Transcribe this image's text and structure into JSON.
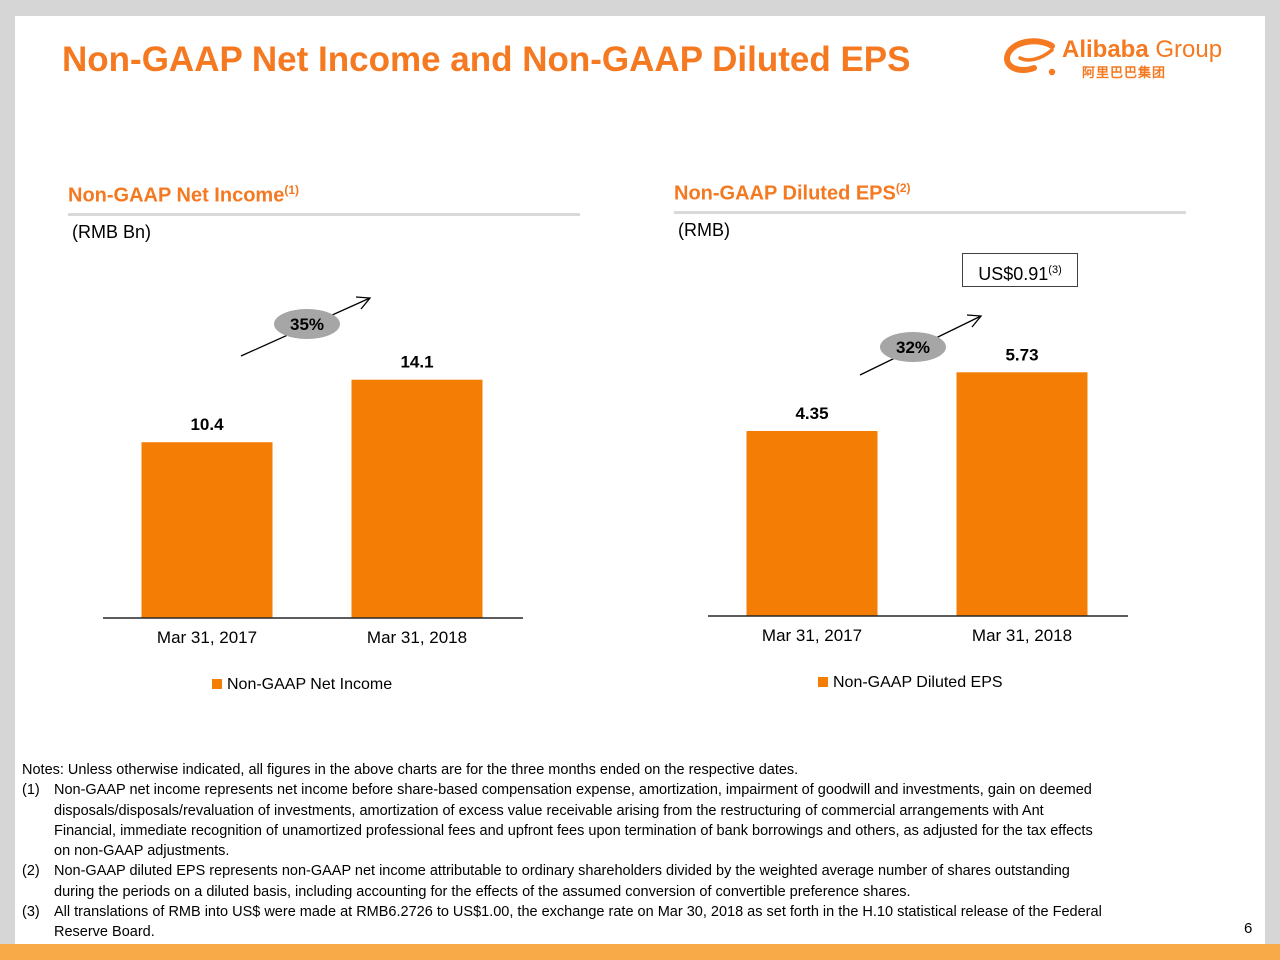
{
  "title": "Non-GAAP Net Income and Non-GAAP Diluted EPS",
  "logo": {
    "name": "Alibaba",
    "group": "Group",
    "chinese": "阿里巴巴集团"
  },
  "colors": {
    "accent": "#f47920",
    "bar": "#f47d05",
    "growth_bubble": "#a6a6a6"
  },
  "left_section": {
    "title": "Non-GAAP Net Income",
    "note_ref": "(1)",
    "unit": "(RMB Bn)"
  },
  "right_section": {
    "title": "Non-GAAP Diluted EPS",
    "note_ref": "(2)",
    "unit": "(RMB)",
    "usd_box": "US$0.91",
    "usd_note_ref": "(3)"
  },
  "chart_data": [
    {
      "type": "bar",
      "title": "Non-GAAP Net Income",
      "unit": "RMB Bn",
      "categories": [
        "Mar 31, 2017",
        "Mar 31, 2018"
      ],
      "series": [
        {
          "name": "Non-GAAP Net Income",
          "values": [
            10.4,
            14.1
          ]
        }
      ],
      "value_labels": [
        "10.4",
        "14.1"
      ],
      "growth": "35%",
      "ylim": [
        0,
        20
      ],
      "legend": "bottom"
    },
    {
      "type": "bar",
      "title": "Non-GAAP Diluted EPS",
      "unit": "RMB",
      "categories": [
        "Mar 31, 2017",
        "Mar 31, 2018"
      ],
      "series": [
        {
          "name": "Non-GAAP Diluted EPS",
          "values": [
            4.35,
            5.73
          ]
        }
      ],
      "value_labels": [
        "4.35",
        "5.73"
      ],
      "growth": "32%",
      "ylim": [
        0,
        7.9
      ],
      "legend": "bottom"
    }
  ],
  "notes": {
    "intro": "Notes: Unless otherwise indicated, all figures in the above charts are for the three months ended on the respective dates.",
    "items": [
      {
        "num": "(1)",
        "lines": [
          "Non-GAAP net income represents net income before share-based compensation expense, amortization, impairment of goodwill and investments, gain on deemed",
          "disposals/disposals/revaluation of investments, amortization of excess value receivable arising from the restructuring of commercial arrangements with Ant",
          "Financial, immediate recognition of unamortized professional fees and upfront fees upon termination of bank borrowings and others, as adjusted for the tax effects",
          "on non-GAAP adjustments."
        ]
      },
      {
        "num": "(2)",
        "lines": [
          "Non-GAAP diluted EPS represents non-GAAP net income attributable to ordinary shareholders divided by the weighted average number of shares outstanding",
          "during the periods on a diluted basis, including accounting for the effects of the assumed conversion of convertible preference shares."
        ]
      },
      {
        "num": "(3)",
        "lines": [
          "All translations of RMB into US$ were made at RMB6.2726 to US$1.00, the exchange rate on Mar 30, 2018 as set forth in the H.10 statistical release of the Federal",
          "Reserve Board."
        ]
      }
    ]
  },
  "page_number": "6"
}
